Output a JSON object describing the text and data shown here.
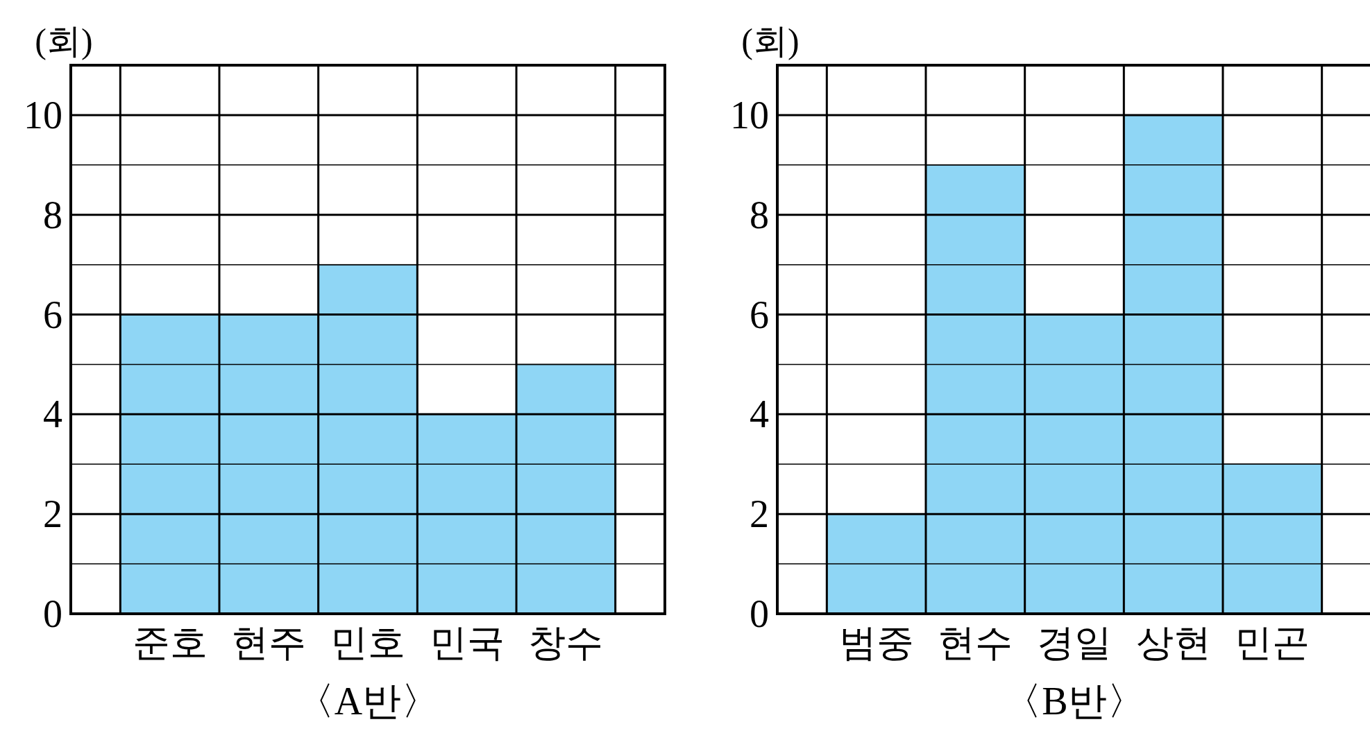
{
  "chart_data": [
    {
      "type": "bar",
      "xlabel": "〈A반〉",
      "ylabel": "(회)",
      "categories": [
        "준호",
        "현주",
        "민호",
        "민국",
        "창수"
      ],
      "values": [
        6,
        6,
        7,
        4,
        5
      ],
      "color": "#8fd6f5",
      "ylim": [
        0,
        11
      ],
      "yticks": [
        0,
        {
          "value": 1,
          "label": null
        },
        2,
        {
          "value": 3,
          "label": null
        },
        4,
        {
          "value": 5,
          "label": null
        },
        6,
        {
          "value": 7,
          "label": null
        },
        8,
        {
          "value": 9,
          "label": null
        },
        10
      ],
      "grid": true
    },
    {
      "type": "bar",
      "xlabel": "〈B반〉",
      "ylabel": "(회)",
      "categories": [
        "범중",
        "현수",
        "경일",
        "상현",
        "민곤"
      ],
      "values": [
        2,
        9,
        6,
        10,
        3
      ],
      "color": "#8fd6f5",
      "ylim": [
        0,
        11
      ],
      "yticks": [
        0,
        {
          "value": 1,
          "label": null
        },
        2,
        {
          "value": 3,
          "label": null
        },
        4,
        {
          "value": 5,
          "label": null
        },
        6,
        {
          "value": 7,
          "label": null
        },
        8,
        {
          "value": 9,
          "label": null
        },
        10
      ],
      "grid": true
    }
  ]
}
